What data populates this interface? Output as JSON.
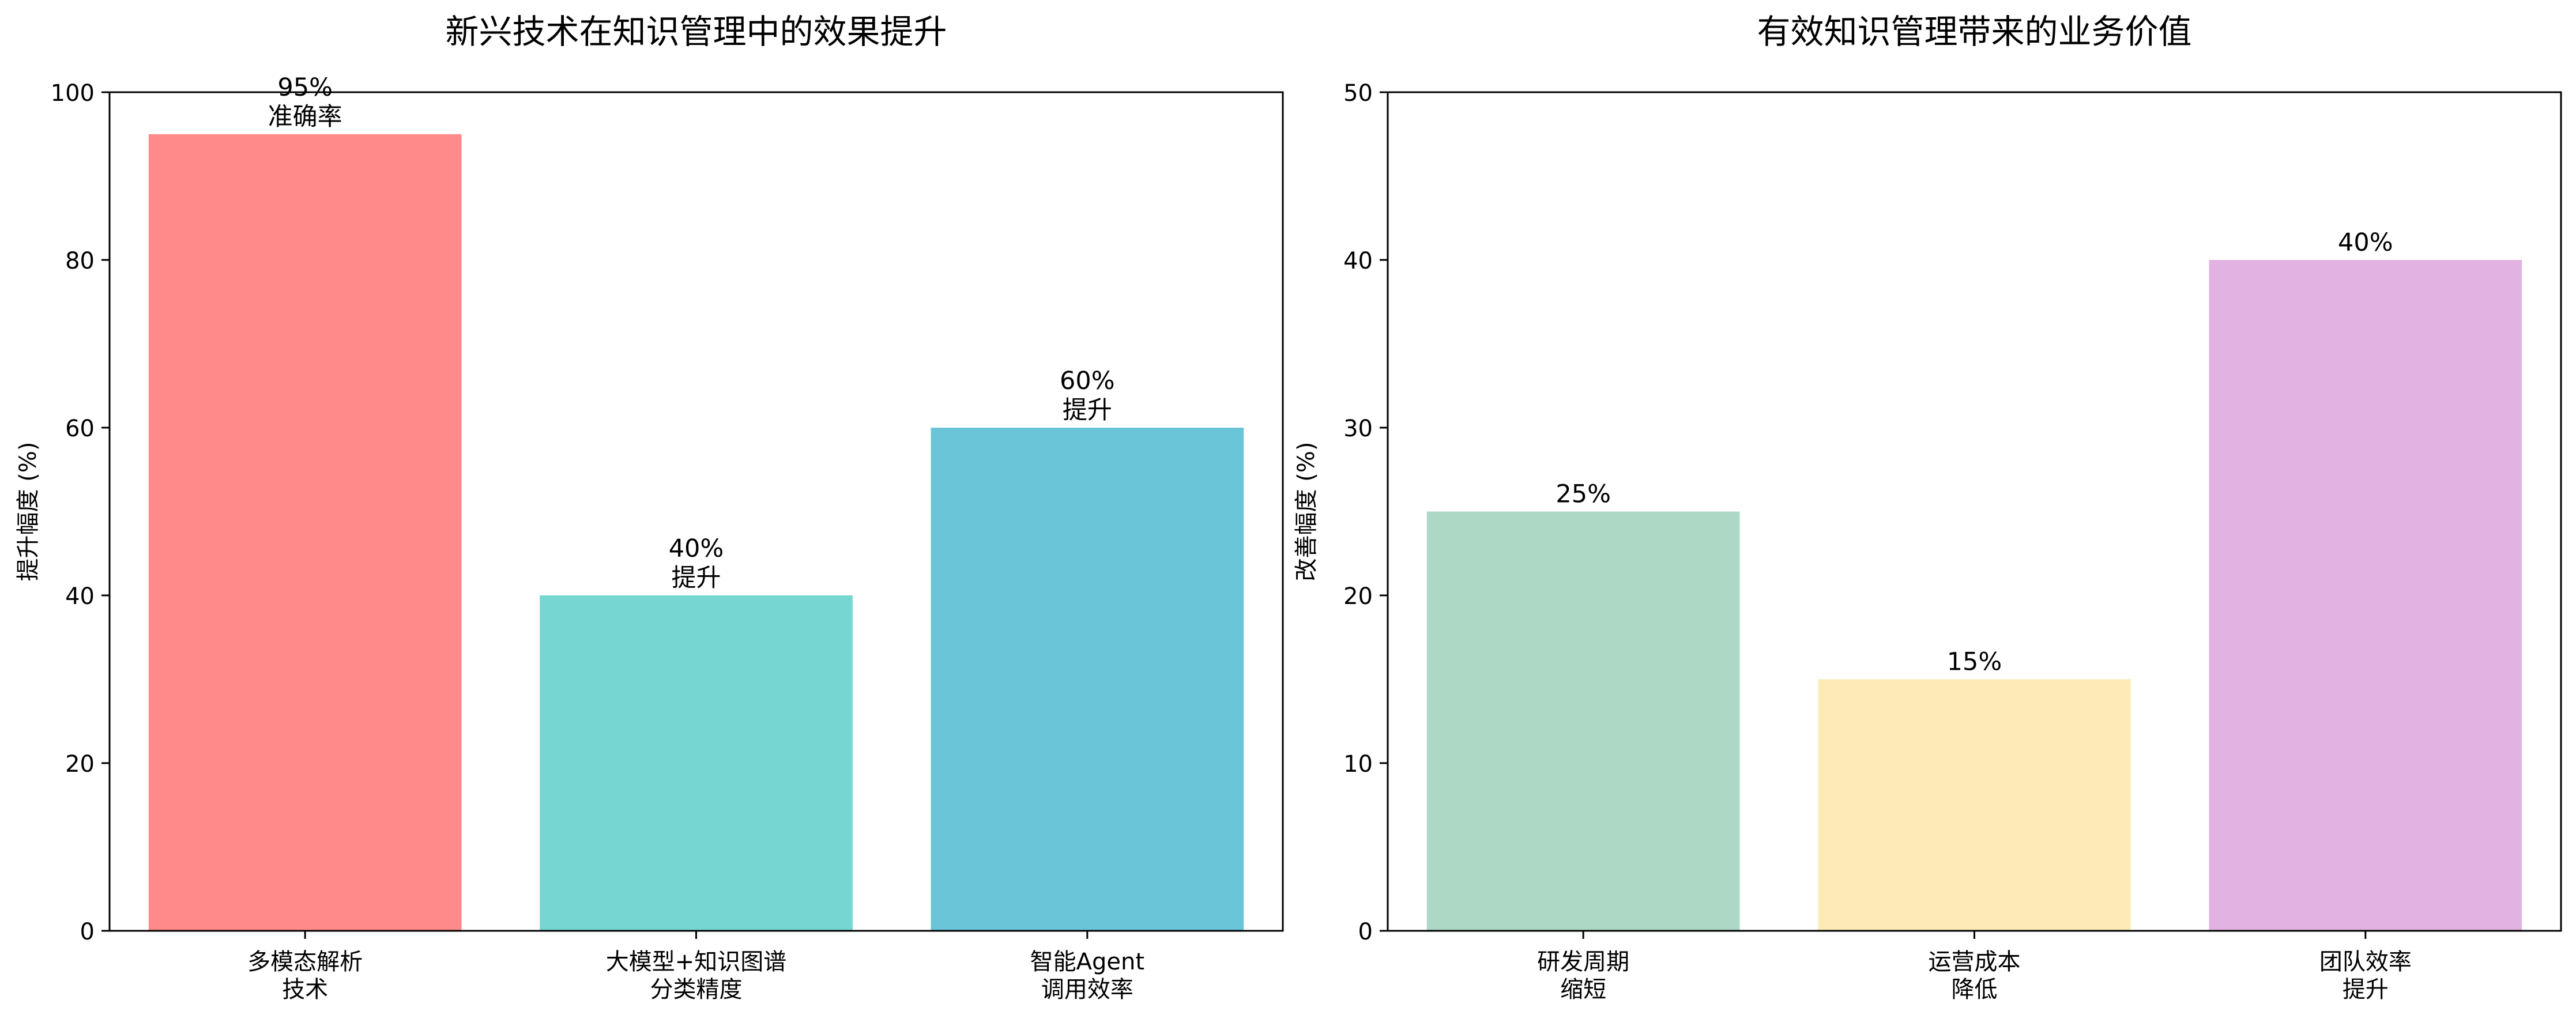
{
  "chart_data": [
    {
      "type": "bar",
      "title": "新兴技术在知识管理中的效果提升",
      "xlabel": "",
      "ylabel": "提升幅度 (%)",
      "categories": [
        [
          "多模态解析",
          "技术"
        ],
        [
          "大模型+知识图谱",
          "分类精度"
        ],
        [
          "智能Agent",
          "调用效率"
        ]
      ],
      "values": [
        95,
        40,
        60
      ],
      "bar_labels": [
        [
          "95%",
          "准确率"
        ],
        [
          "40%",
          "提升"
        ],
        [
          "60%",
          "提升"
        ]
      ],
      "colors": [
        "#ff8a8a",
        "#76d7d1",
        "#6ac5d9"
      ],
      "ylim": [
        0,
        100
      ],
      "yticks": [
        "0",
        "20",
        "40",
        "60",
        "80",
        "100"
      ],
      "grid": false,
      "legend": "none"
    },
    {
      "type": "bar",
      "title": "有效知识管理带来的业务价值",
      "xlabel": "",
      "ylabel": "改善幅度 (%)",
      "categories": [
        [
          "研发周期",
          "缩短"
        ],
        [
          "运营成本",
          "降低"
        ],
        [
          "团队效率",
          "提升"
        ]
      ],
      "values": [
        25,
        15,
        40
      ],
      "bar_labels": [
        [
          "25%"
        ],
        [
          "15%"
        ],
        [
          "40%"
        ]
      ],
      "colors": [
        "#acd8c5",
        "#fdebb7",
        "#e2b3e2"
      ],
      "ylim": [
        0,
        50
      ],
      "yticks": [
        "0",
        "10",
        "20",
        "30",
        "40",
        "50"
      ],
      "grid": false,
      "legend": "none"
    }
  ]
}
